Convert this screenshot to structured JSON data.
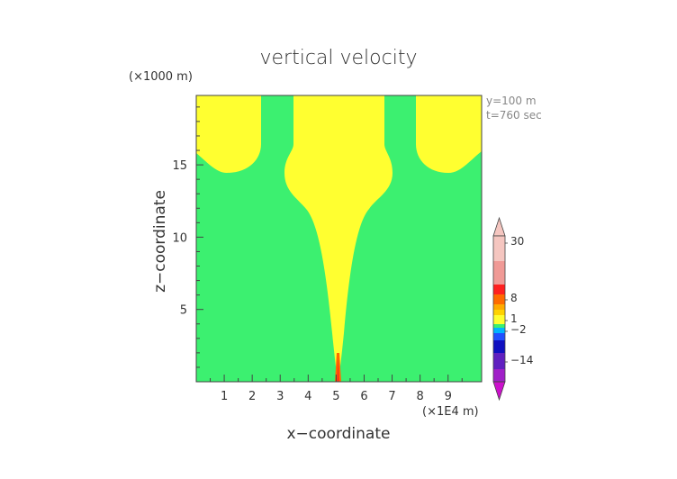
{
  "chart_data": {
    "type": "heatmap",
    "title": "vertical velocity",
    "xlabel": "x−coordinate",
    "ylabel": "z−coordinate",
    "x_scale_label": "(×1E4 m)",
    "y_scale_label": "(×1000 m)",
    "annotations": [
      "y=100  m",
      "t=760  sec"
    ],
    "xlim": [
      0,
      10.2
    ],
    "ylim": [
      0,
      19.8
    ],
    "x_ticks": [
      "1",
      "2",
      "3",
      "4",
      "5",
      "6",
      "7",
      "8",
      "9"
    ],
    "y_ticks": [
      "5",
      "10",
      "15"
    ],
    "colorbar": {
      "labels": [
        "30",
        "8",
        "1",
        "−2",
        "−14"
      ],
      "colors": [
        "#f5c6c0",
        "#f09a96",
        "#ff2020",
        "#ff6a00",
        "#ffaa00",
        "#ffd200",
        "#ffff30",
        "#3cf070",
        "#00b4ff",
        "#2050ff",
        "#1010c0",
        "#6020c0",
        "#a020c8",
        "#cc10cc"
      ]
    },
    "regions": [
      {
        "name": "background",
        "value_range": "-2 to 1",
        "color": "#3cf070"
      },
      {
        "name": "updraft",
        "value_range": "1 to 8",
        "color": "#ffff30"
      }
    ]
  },
  "colors": {
    "green": "#3cf070",
    "yellow": "#ffff30"
  }
}
